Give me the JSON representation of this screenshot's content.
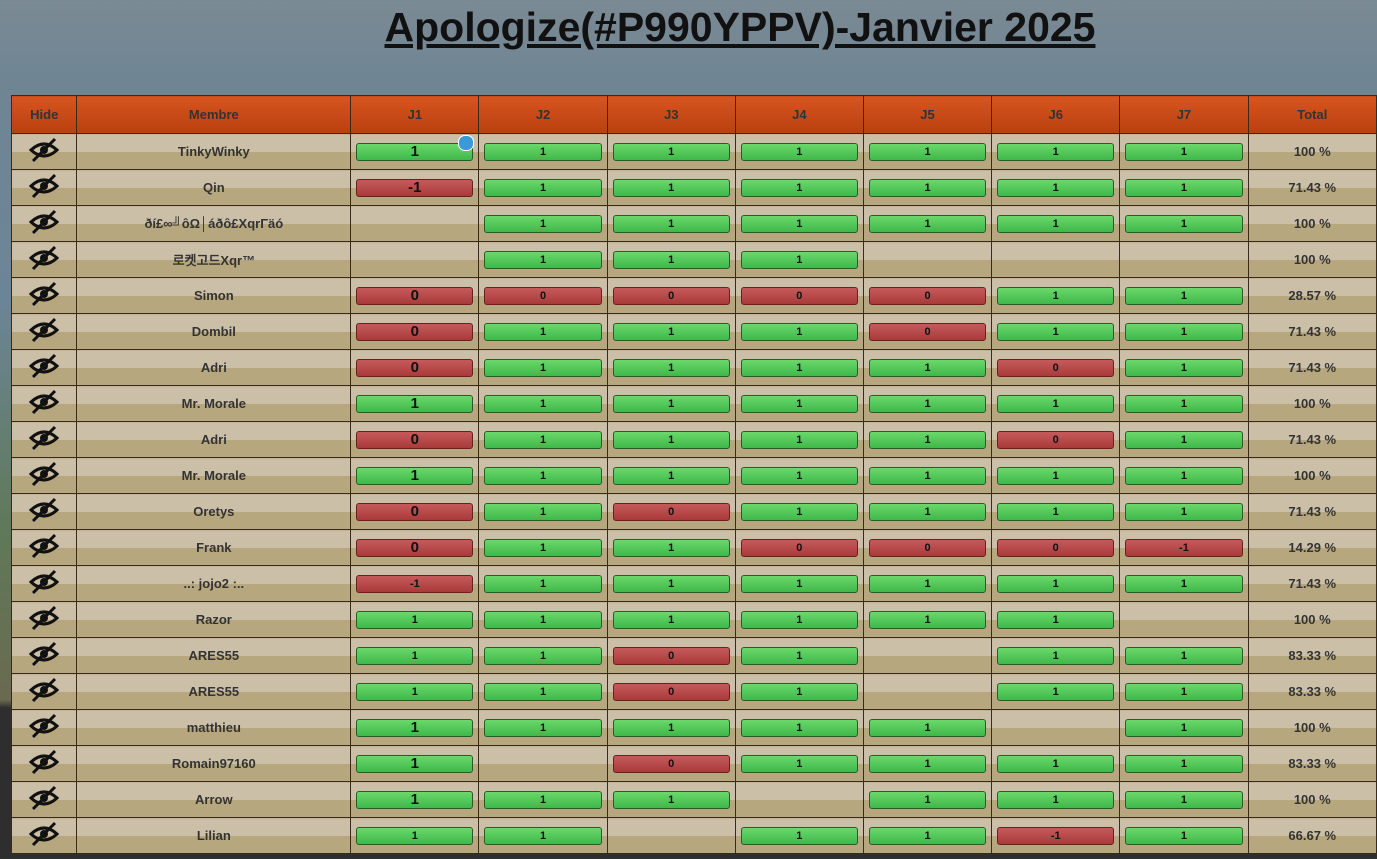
{
  "header": {
    "title": "Apologize(#P990YPPV)-Janvier 2025"
  },
  "table": {
    "columns": [
      "Hide",
      "Membre",
      "J1",
      "J2",
      "J3",
      "J4",
      "J5",
      "J6",
      "J7",
      "Total"
    ],
    "rows": [
      {
        "member": "TinkyWinky",
        "cells": [
          "1",
          "1",
          "1",
          "1",
          "1",
          "1",
          "1"
        ],
        "total": "100 %"
      },
      {
        "member": "Qin",
        "cells": [
          "-1",
          "1",
          "1",
          "1",
          "1",
          "1",
          "1"
        ],
        "total": "71.43 %"
      },
      {
        "member": "ðí£∞╝ôΩ│áðô£XqrΓäó",
        "cells": [
          null,
          "1",
          "1",
          "1",
          "1",
          "1",
          "1"
        ],
        "total": "100 %"
      },
      {
        "member": "로켓고드Xqr™",
        "cells": [
          null,
          "1",
          "1",
          "1",
          null,
          null,
          null
        ],
        "total": "100 %"
      },
      {
        "member": "Simon",
        "cells": [
          "0",
          "0",
          "0",
          "0",
          "0",
          "1",
          "1"
        ],
        "total": "28.57 %"
      },
      {
        "member": "Dombil",
        "cells": [
          "0",
          "1",
          "1",
          "1",
          "0",
          "1",
          "1"
        ],
        "total": "71.43 %"
      },
      {
        "member": "Adri",
        "cells": [
          "0",
          "1",
          "1",
          "1",
          "1",
          "0",
          "1"
        ],
        "total": "71.43 %"
      },
      {
        "member": "Mr. Morale",
        "cells": [
          "1",
          "1",
          "1",
          "1",
          "1",
          "1",
          "1"
        ],
        "total": "100 %"
      },
      {
        "member": "Adri",
        "cells": [
          "0",
          "1",
          "1",
          "1",
          "1",
          "0",
          "1"
        ],
        "total": "71.43 %"
      },
      {
        "member": "Mr. Morale",
        "cells": [
          "1",
          "1",
          "1",
          "1",
          "1",
          "1",
          "1"
        ],
        "total": "100 %"
      },
      {
        "member": "Oretys",
        "cells": [
          "0",
          "1",
          "0",
          "1",
          "1",
          "1",
          "1"
        ],
        "total": "71.43 %"
      },
      {
        "member": "Frank",
        "cells": [
          "0",
          "1",
          "1",
          "0",
          "0",
          "0",
          "-1"
        ],
        "total": "14.29 %"
      },
      {
        "member": "..: jojo2 :..",
        "cells": [
          "-1",
          "1",
          "1",
          "1",
          "1",
          "1",
          "1"
        ],
        "total": "71.43 %"
      },
      {
        "member": "Razor",
        "cells": [
          "1",
          "1",
          "1",
          "1",
          "1",
          "1",
          null
        ],
        "total": "100 %"
      },
      {
        "member": "ARES55",
        "cells": [
          "1",
          "1",
          "0",
          "1",
          null,
          "1",
          "1"
        ],
        "total": "83.33 %"
      },
      {
        "member": "ARES55",
        "cells": [
          "1",
          "1",
          "0",
          "1",
          null,
          "1",
          "1"
        ],
        "total": "83.33 %"
      },
      {
        "member": "matthieu",
        "cells": [
          "1",
          "1",
          "1",
          "1",
          "1",
          null,
          "1"
        ],
        "total": "100 %"
      },
      {
        "member": "Romain97160",
        "cells": [
          "1",
          null,
          "0",
          "1",
          "1",
          "1",
          "1"
        ],
        "total": "83.33 %"
      },
      {
        "member": "Arrow",
        "cells": [
          "1",
          "1",
          "1",
          null,
          "1",
          "1",
          "1"
        ],
        "total": "100 %"
      },
      {
        "member": "Lilian",
        "cells": [
          "1",
          "1",
          null,
          "1",
          "1",
          "-1",
          "1"
        ],
        "total": "66.67 %"
      }
    ]
  }
}
